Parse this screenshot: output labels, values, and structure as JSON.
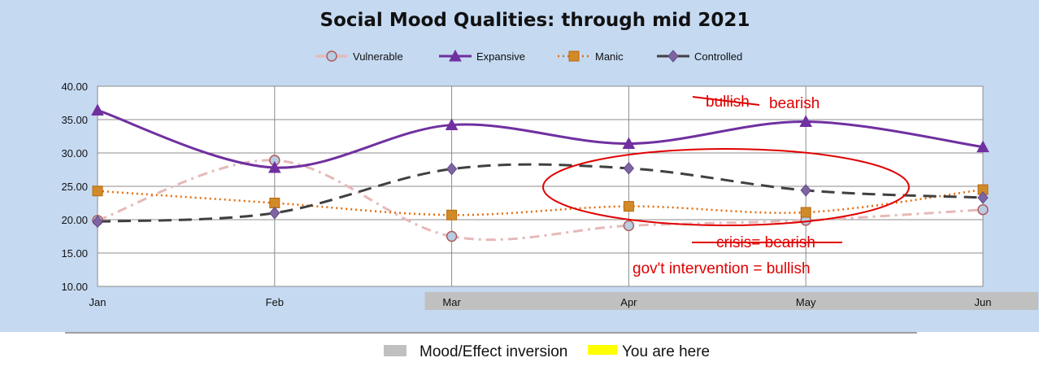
{
  "chart_data": {
    "type": "line",
    "title": "Social Mood Qualities:  through mid 2021",
    "categories": [
      "Jan",
      "Feb",
      "Mar",
      "Apr",
      "May",
      "Jun"
    ],
    "ylim": [
      10,
      40
    ],
    "yticks": [
      "10.00",
      "15.00",
      "20.00",
      "25.00",
      "30.00",
      "35.00",
      "40.00"
    ],
    "grid": true,
    "legend_position": "top",
    "series": [
      {
        "name": "Vulnerable",
        "values": [
          19.9,
          28.9,
          17.5,
          19.1,
          19.9,
          21.5
        ],
        "color": "#e6b9b8",
        "marker": "circle",
        "marker_fill": "#b8cce4"
      },
      {
        "name": "Expansive",
        "values": [
          36.4,
          27.8,
          34.2,
          31.4,
          34.7,
          30.9
        ],
        "color": "#7030a0",
        "marker": "triangle",
        "marker_fill": "#7030a0"
      },
      {
        "name": "Manic",
        "values": [
          24.3,
          22.5,
          20.7,
          22.0,
          21.1,
          24.5
        ],
        "color": "#e36c09",
        "marker": "square",
        "marker_fill": "#d08a28"
      },
      {
        "name": "Controlled",
        "values": [
          19.7,
          21.0,
          27.6,
          27.7,
          24.4,
          23.3
        ],
        "color": "#404040",
        "marker": "diamond",
        "marker_fill": "#8064a2"
      }
    ],
    "annotations": {
      "bullish_struck": "bullish",
      "bearish": "bearish",
      "crisis_struck": "crisis= bearish",
      "intervention": "gov't intervention = bullish"
    },
    "inversion_band": {
      "from": "Mar",
      "to": "Jun"
    }
  },
  "footer": {
    "inversion_label": "Mood/Effect inversion",
    "inversion_color": "#c0c0c0",
    "here_label": "You are here",
    "here_color": "#ffff00"
  }
}
